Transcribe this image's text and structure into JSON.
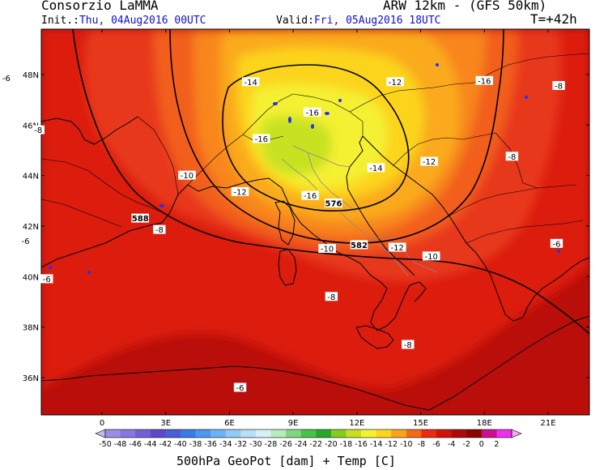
{
  "header": {
    "provider": "Consorzio LaMMA",
    "model": "ARW 12km - (GFS 50km)",
    "init_label": "Init.:",
    "init_value": "Thu, 04Aug2016 00UTC",
    "valid_label": "Valid:",
    "valid_value": "Fri, 05Aug2016 18UTC",
    "lead_time": "T=+42h"
  },
  "map": {
    "lat_labels": [
      "48N",
      "46N",
      "44N",
      "42N",
      "40N",
      "38N",
      "36N"
    ],
    "lon_labels": [
      "0",
      "3E",
      "6E",
      "9E",
      "12E",
      "15E",
      "18E",
      "21E"
    ],
    "temp_labels": [
      {
        "text": "-6",
        "lon": -4.5,
        "lat": 47.85
      },
      {
        "text": "-8",
        "lon": -3.0,
        "lat": 45.8
      },
      {
        "text": "-14",
        "lon": 7.0,
        "lat": 47.7
      },
      {
        "text": "-12",
        "lon": 13.8,
        "lat": 47.7
      },
      {
        "text": "-16",
        "lon": 18.0,
        "lat": 47.75
      },
      {
        "text": "-8",
        "lon": 21.5,
        "lat": 47.55
      },
      {
        "text": "-16",
        "lon": 9.9,
        "lat": 46.5
      },
      {
        "text": "-16",
        "lon": 7.5,
        "lat": 45.45
      },
      {
        "text": "-10",
        "lon": 4.0,
        "lat": 44.0
      },
      {
        "text": "-14",
        "lon": 12.9,
        "lat": 44.3
      },
      {
        "text": "-12",
        "lon": 15.4,
        "lat": 44.55
      },
      {
        "text": "-8",
        "lon": 19.3,
        "lat": 44.75
      },
      {
        "text": "-12",
        "lon": 6.5,
        "lat": 43.35
      },
      {
        "text": "-16",
        "lon": 9.8,
        "lat": 43.2
      },
      {
        "text": "-8",
        "lon": 2.7,
        "lat": 41.85
      },
      {
        "text": "-6",
        "lon": -3.6,
        "lat": 41.4
      },
      {
        "text": "-10",
        "lon": 10.6,
        "lat": 41.1
      },
      {
        "text": "-12",
        "lon": 13.9,
        "lat": 41.15
      },
      {
        "text": "-10",
        "lon": 15.5,
        "lat": 40.8
      },
      {
        "text": "-6",
        "lon": 21.4,
        "lat": 41.3
      },
      {
        "text": "-6",
        "lon": -2.6,
        "lat": 39.9
      },
      {
        "text": "-8",
        "lon": 10.8,
        "lat": 39.2
      },
      {
        "text": "-8",
        "lon": 14.4,
        "lat": 37.3
      },
      {
        "text": "-6",
        "lon": 6.5,
        "lat": 35.6
      }
    ],
    "height_labels": [
      {
        "text": "576",
        "lon": 10.9,
        "lat": 42.9
      },
      {
        "text": "588",
        "lon": 1.8,
        "lat": 42.3
      },
      {
        "text": "582",
        "lon": 12.1,
        "lat": 41.25
      }
    ]
  },
  "colorbar": {
    "labels": [
      "-50",
      "-48",
      "-46",
      "-44",
      "-42",
      "-40",
      "-38",
      "-36",
      "-34",
      "-32",
      "-30",
      "-28",
      "-26",
      "-24",
      "-22",
      "-20",
      "-18",
      "-16",
      "-14",
      "-12",
      "-10",
      "-8",
      "-6",
      "-4",
      "-2",
      "0",
      "2"
    ],
    "colors": [
      "#9b8de8",
      "#8877e0",
      "#7460d6",
      "#5e48c8",
      "#4a5ed8",
      "#3a7ce8",
      "#4a98f0",
      "#6cb2f4",
      "#92c9f6",
      "#b8def8",
      "#d6f0f4",
      "#b6ecbc",
      "#7ed87e",
      "#48c24a",
      "#28a828",
      "#84cc1e",
      "#c6e020",
      "#f4f230",
      "#fcd61c",
      "#faa41c",
      "#f46a16",
      "#ee2a10",
      "#d01408",
      "#ac0a06",
      "#8a0404",
      "#cc1090",
      "#ee30ee"
    ],
    "low_color": "#c4b8ee",
    "high_color": "#f8a8f4",
    "title": "500hPa GeoPot [dam] + Temp [C]"
  }
}
